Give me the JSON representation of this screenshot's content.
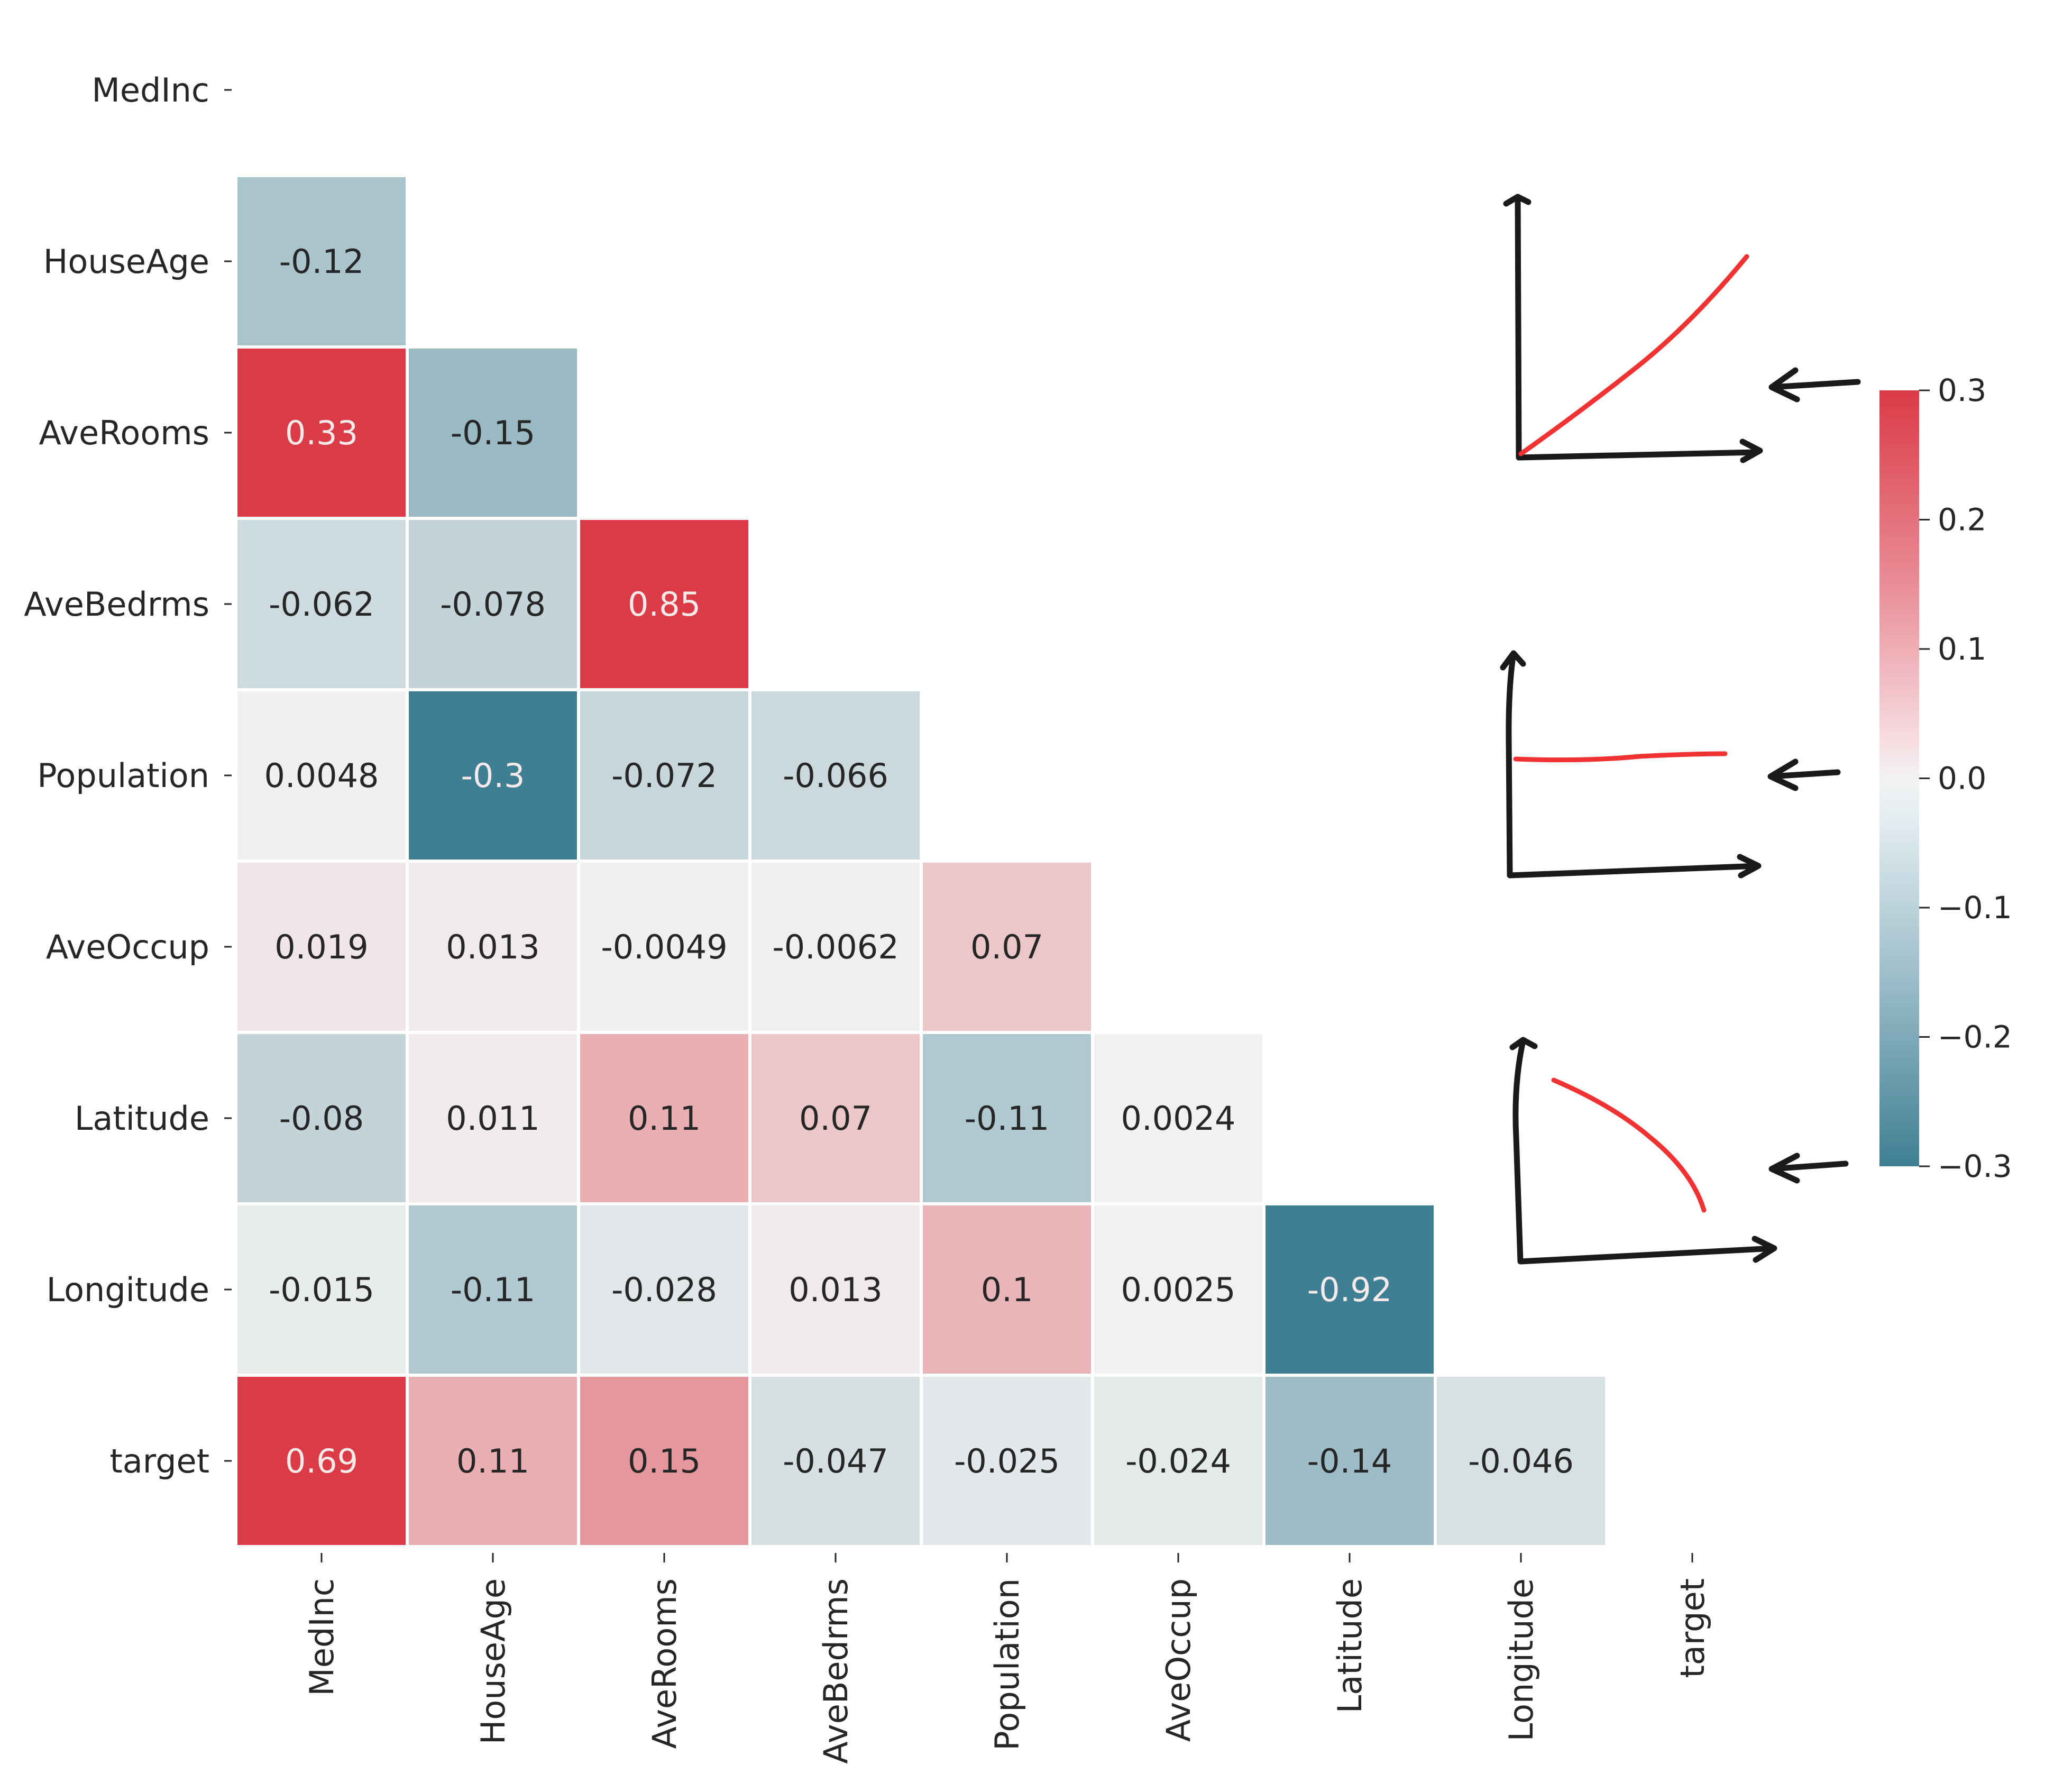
{
  "chart_data": {
    "type": "heatmap",
    "title": "",
    "variables": [
      "MedInc",
      "HouseAge",
      "AveRooms",
      "AveBedrms",
      "Population",
      "AveOccup",
      "Latitude",
      "Longitude",
      "target"
    ],
    "mask": "upper-triangle-including-diagonal",
    "lower_triangle": [
      {
        "row": "HouseAge",
        "values": [
          "-0.12"
        ]
      },
      {
        "row": "AveRooms",
        "values": [
          "0.33",
          "-0.15"
        ]
      },
      {
        "row": "AveBedrms",
        "values": [
          "-0.062",
          "-0.078",
          "0.85"
        ]
      },
      {
        "row": "Population",
        "values": [
          "0.0048",
          "-0.3",
          "-0.072",
          "-0.066"
        ]
      },
      {
        "row": "AveOccup",
        "values": [
          "0.019",
          "0.013",
          "-0.0049",
          "-0.0062",
          "0.07"
        ]
      },
      {
        "row": "Latitude",
        "values": [
          "-0.08",
          "0.011",
          "0.11",
          "0.07",
          "-0.11",
          "0.0024"
        ]
      },
      {
        "row": "Longitude",
        "values": [
          "-0.015",
          "-0.11",
          "-0.028",
          "0.013",
          "0.1",
          "0.0025",
          "-0.92"
        ]
      },
      {
        "row": "target",
        "values": [
          "0.69",
          "0.11",
          "0.15",
          "-0.047",
          "-0.025",
          "-0.024",
          "-0.14",
          "-0.046"
        ]
      }
    ],
    "colorbar": {
      "range": [
        -0.3,
        0.3
      ],
      "ticks": [
        "0.3",
        "0.2",
        "0.1",
        "0.0",
        "−0.1",
        "−0.2",
        "−0.3"
      ],
      "tick_values": [
        0.3,
        0.2,
        0.1,
        0.0,
        -0.1,
        -0.2,
        -0.3
      ],
      "colors": {
        "negative": "#3f7f93",
        "center": "#f2f2f2",
        "positive": "#da3b46"
      }
    },
    "annotations": [
      {
        "kind": "hand-drawn-sketch",
        "meaning": "positive correlation line",
        "points_to": 0.3
      },
      {
        "kind": "hand-drawn-sketch",
        "meaning": "flat line (no correlation)",
        "points_to": 0.0
      },
      {
        "kind": "hand-drawn-sketch",
        "meaning": "negative correlation line",
        "points_to": -0.3
      }
    ],
    "xlabel": "",
    "ylabel": "",
    "grid": false,
    "legend": "colorbar right"
  }
}
